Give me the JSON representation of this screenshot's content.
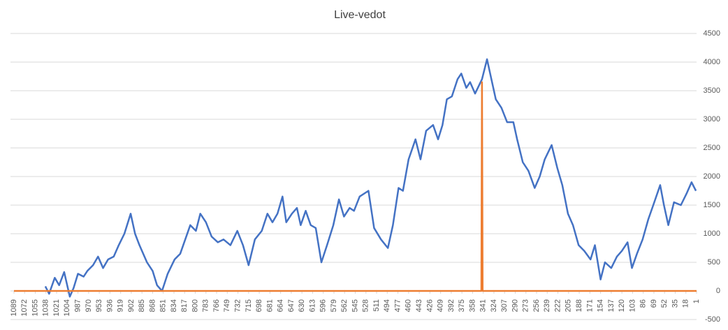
{
  "chart_data": {
    "type": "line",
    "title": "Live-vedot",
    "xlim": [
      1089,
      1
    ],
    "xticks": [
      1089,
      1072,
      1055,
      1038,
      1021,
      1004,
      987,
      970,
      953,
      936,
      919,
      902,
      885,
      868,
      851,
      834,
      817,
      800,
      783,
      766,
      749,
      732,
      715,
      698,
      681,
      664,
      647,
      630,
      613,
      596,
      579,
      562,
      545,
      528,
      511,
      494,
      477,
      460,
      443,
      426,
      409,
      392,
      375,
      358,
      341,
      324,
      307,
      290,
      273,
      256,
      239,
      222,
      205,
      188,
      171,
      154,
      137,
      120,
      103,
      86,
      69,
      52,
      35,
      18,
      1
    ],
    "ylim": [
      -500,
      4500
    ],
    "yticks": [
      -500,
      0,
      500,
      1000,
      1500,
      2000,
      2500,
      3000,
      3500,
      4000,
      4500
    ],
    "grid": true,
    "series": [
      {
        "color": "#4472c4",
        "x": [
          1039,
          1033,
          1024,
          1017,
          1009,
          1000,
          994,
          987,
          978,
          972,
          963,
          955,
          947,
          939,
          930,
          922,
          913,
          903,
          896,
          889,
          877,
          868,
          861,
          853,
          844,
          833,
          824,
          816,
          808,
          799,
          792,
          783,
          774,
          764,
          755,
          744,
          733,
          724,
          715,
          705,
          694,
          685,
          677,
          669,
          661,
          655,
          646,
          638,
          632,
          624,
          616,
          608,
          599,
          590,
          580,
          571,
          563,
          554,
          547,
          538,
          524,
          515,
          504,
          493,
          485,
          476,
          469,
          460,
          449,
          441,
          432,
          421,
          413,
          406,
          399,
          391,
          382,
          376,
          368,
          362,
          354,
          343,
          335,
          328,
          321,
          312,
          303,
          293,
          287,
          278,
          269,
          259,
          251,
          243,
          232,
          223,
          215,
          206,
          198,
          189,
          180,
          170,
          163,
          154,
          147,
          137,
          128,
          120,
          111,
          104,
          96,
          87,
          78,
          70,
          59,
          53,
          46,
          37,
          26,
          17,
          9,
          2
        ],
        "values": [
          80,
          -50,
          230,
          100,
          330,
          -100,
          50,
          300,
          250,
          350,
          450,
          600,
          400,
          550,
          600,
          800,
          1000,
          1350,
          1000,
          800,
          500,
          350,
          100,
          0,
          300,
          550,
          650,
          900,
          1150,
          1050,
          1350,
          1200,
          950,
          850,
          900,
          800,
          1050,
          800,
          450,
          900,
          1050,
          1350,
          1200,
          1350,
          1650,
          1200,
          1350,
          1450,
          1150,
          1400,
          1150,
          1100,
          500,
          800,
          1150,
          1600,
          1300,
          1450,
          1400,
          1650,
          1750,
          1100,
          900,
          750,
          1150,
          1800,
          1750,
          2300,
          2650,
          2300,
          2800,
          2900,
          2650,
          2900,
          3350,
          3400,
          3700,
          3800,
          3550,
          3650,
          3450,
          3700,
          4050,
          3700,
          3350,
          3200,
          2950,
          2950,
          2650,
          2250,
          2100,
          1800,
          2000,
          2300,
          2550,
          2150,
          1850,
          1350,
          1150,
          800,
          700,
          550,
          800,
          200,
          500,
          400,
          600,
          700,
          850,
          400,
          650,
          900,
          1250,
          1500,
          1850,
          1500,
          1150,
          1550,
          1500,
          1700,
          1900,
          1750
        ]
      },
      {
        "color": "#ed7d31",
        "x": [
          1089,
          344,
          343,
          342,
          1
        ],
        "values": [
          0,
          0,
          3650,
          0,
          0
        ]
      }
    ]
  }
}
